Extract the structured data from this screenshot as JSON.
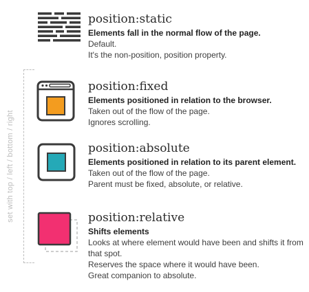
{
  "side_label": "set with top / left / bottom / right",
  "colors": {
    "fixed_square": "#f39c1f",
    "absolute_square": "#25a9b7",
    "relative_square": "#f23071",
    "icon_stroke": "#3a3a3a",
    "dashed_guides": "#bdbdbd"
  },
  "sections": [
    {
      "key": "static",
      "icon": "text-lines-icon",
      "title": "position:static",
      "subtitle": "Elements fall in the normal flow of the page.",
      "lines": [
        "Default.",
        "It's the non-position, position property."
      ]
    },
    {
      "key": "fixed",
      "icon": "browser-window-icon",
      "title": "position:fixed",
      "subtitle": "Elements positioned in relation to the browser.",
      "lines": [
        "Taken out of the flow of the page.",
        "Ignores scrolling."
      ]
    },
    {
      "key": "absolute",
      "icon": "box-in-frame-icon",
      "title": "position:absolute",
      "subtitle": "Elements positioned in relation to its parent element.",
      "lines": [
        "Taken out of the flow of the page.",
        "Parent must be fixed, absolute, or relative."
      ]
    },
    {
      "key": "relative",
      "icon": "shifted-box-icon",
      "title": "position:relative",
      "subtitle": "Shifts elements",
      "lines": [
        "Looks at where element would have been and shifts it from that spot.",
        "Reserves the space where it would have been.",
        "Great companion to absolute."
      ]
    }
  ]
}
